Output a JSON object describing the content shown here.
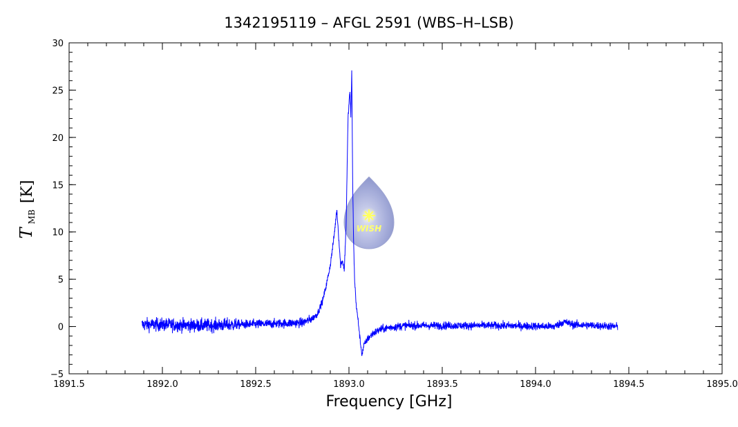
{
  "chart_data": {
    "type": "line",
    "title": "1342195119 – AFGL 2591 (WBS–H–LSB)",
    "xlabel": "Frequency [GHz]",
    "ylabel_main": "T",
    "ylabel_sub": "MB",
    "ylabel_unit": "[K]",
    "xlim": [
      1891.5,
      1895.0
    ],
    "ylim": [
      -5,
      30
    ],
    "x_ticks": [
      1891.5,
      1892.0,
      1892.5,
      1893.0,
      1893.5,
      1894.0,
      1894.5,
      1895.0
    ],
    "x_tick_labels": [
      "1891.5",
      "1892.0",
      "1892.5",
      "1893.0",
      "1893.5",
      "1894.0",
      "1894.5",
      "1895.0"
    ],
    "y_ticks": [
      -5,
      0,
      5,
      10,
      15,
      20,
      25,
      30
    ],
    "y_tick_labels": [
      "−5",
      "0",
      "5",
      "10",
      "15",
      "20",
      "25",
      "30"
    ],
    "grid": false,
    "series": [
      {
        "color": "#0000ff",
        "x": [
          1891.89,
          1892.0,
          1892.2,
          1892.4,
          1892.6,
          1892.75,
          1892.8,
          1892.83,
          1892.86,
          1892.88,
          1892.9,
          1892.92,
          1892.935,
          1892.945,
          1892.955,
          1892.965,
          1892.975,
          1892.985,
          1892.995,
          1893.0,
          1893.005,
          1893.01,
          1893.015,
          1893.02,
          1893.025,
          1893.03,
          1893.04,
          1893.05,
          1893.06,
          1893.07,
          1893.08,
          1893.1,
          1893.13,
          1893.17,
          1893.22,
          1893.3,
          1893.5,
          1893.8,
          1894.1,
          1894.15,
          1894.2,
          1894.44
        ],
        "y": [
          0.2,
          0.2,
          0.1,
          0.2,
          0.3,
          0.4,
          0.8,
          1.3,
          2.8,
          4.5,
          6.5,
          9.5,
          12.4,
          9.5,
          6.5,
          7.0,
          6.0,
          11.0,
          22.0,
          23.5,
          25.0,
          22.0,
          27.2,
          15.0,
          9.0,
          5.0,
          2.0,
          0.5,
          -1.5,
          -3.0,
          -2.0,
          -1.3,
          -0.7,
          -0.3,
          -0.1,
          0.1,
          0.1,
          0.1,
          0.0,
          0.5,
          0.2,
          0.0
        ]
      }
    ]
  },
  "logo": {
    "text": "WISH"
  }
}
